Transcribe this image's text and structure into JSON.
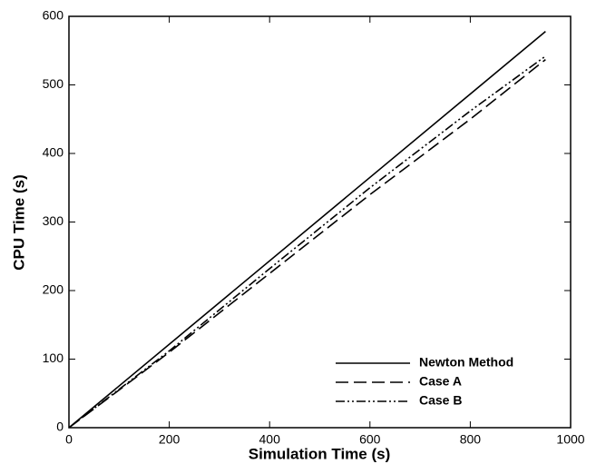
{
  "chart_data": {
    "type": "line",
    "x_label": "Simulation Time (s)",
    "y_label": "CPU Time (s)",
    "xlim": [
      0,
      1000
    ],
    "xticks": [
      0,
      200,
      400,
      600,
      800,
      1000
    ],
    "ylim": [
      0,
      600
    ],
    "yticks": [
      0,
      100,
      200,
      300,
      400,
      500,
      600
    ],
    "legend": "lower-right",
    "series": [
      {
        "name": "Newton Method",
        "color": "#000000",
        "dash": "solid",
        "x": [
          0,
          950
        ],
        "values": [
          0,
          578
        ]
      },
      {
        "name": "Case A",
        "color": "#000000",
        "dash": "dashed",
        "x": [
          0,
          200,
          400,
          600,
          800,
          950
        ],
        "values": [
          0,
          110,
          225,
          340,
          450,
          537
        ]
      },
      {
        "name": "Case B",
        "color": "#000000",
        "dash": "dash-dot-dot",
        "x": [
          0,
          200,
          400,
          600,
          800,
          950
        ],
        "values": [
          0,
          112,
          232,
          350,
          462,
          542
        ]
      }
    ]
  }
}
